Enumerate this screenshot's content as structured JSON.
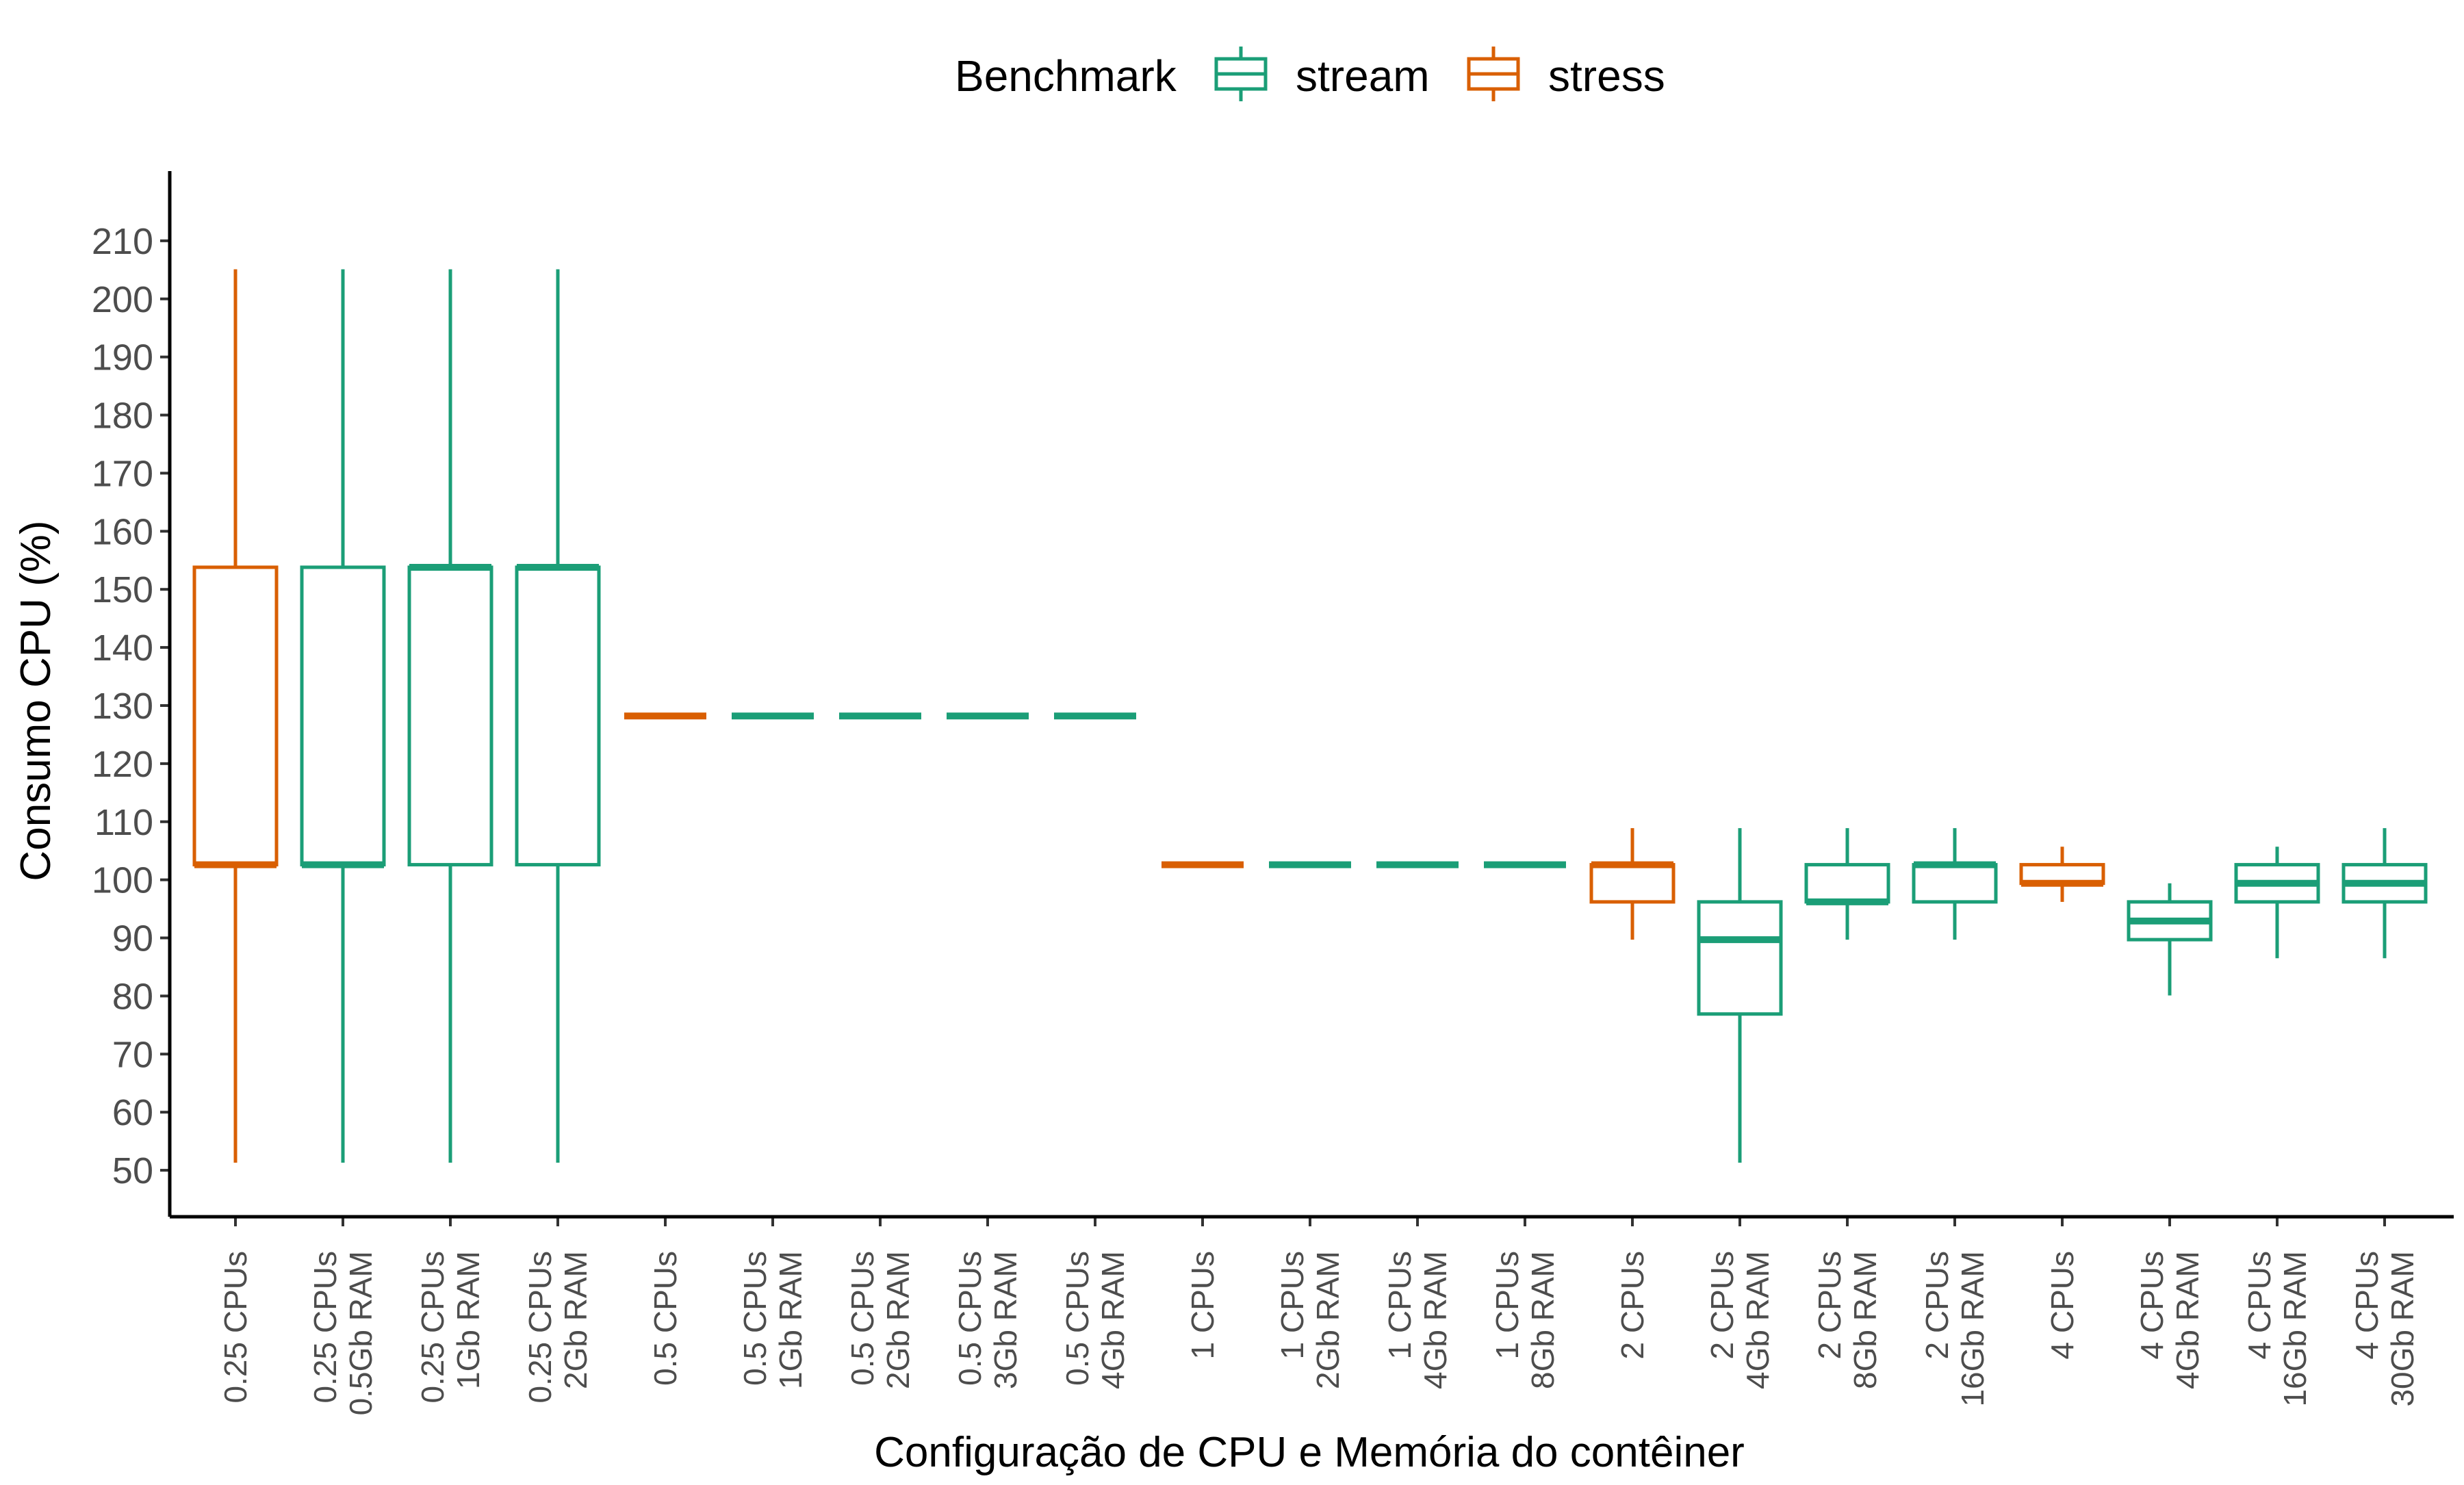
{
  "chart_data": {
    "type": "boxplot",
    "title": "",
    "xlabel": "Configuração de CPU e Memória do contêiner",
    "ylabel": "Consumo CPU (%)",
    "ylim": [
      42,
      222
    ],
    "yticks": [
      50,
      60,
      70,
      80,
      90,
      100,
      110,
      120,
      130,
      140,
      150,
      160,
      170,
      180,
      190,
      200,
      210
    ],
    "grid": false,
    "legend": {
      "title": "Benchmark",
      "position": "top",
      "entries": [
        {
          "name": "stream",
          "color": "#1b9e77"
        },
        {
          "name": "stress",
          "color": "#d95f02"
        }
      ]
    },
    "categories": [
      [
        "0.25 CPUs"
      ],
      [
        "0.25 CPUs",
        "0.5Gb RAM"
      ],
      [
        "0.25 CPUs",
        "1Gb RAM"
      ],
      [
        "0.25 CPUs",
        "2Gb RAM"
      ],
      [
        "0.5 CPUs"
      ],
      [
        "0.5 CPUs",
        "1Gb RAM"
      ],
      [
        "0.5 CPUs",
        "2Gb RAM"
      ],
      [
        "0.5 CPUs",
        "3Gb RAM"
      ],
      [
        "0.5 CPUs",
        "4Gb RAM"
      ],
      [
        "1 CPUs"
      ],
      [
        "1 CPUs",
        "2Gb RAM"
      ],
      [
        "1 CPUs",
        "4Gb RAM"
      ],
      [
        "1 CPUs",
        "8Gb RAM"
      ],
      [
        "2 CPUs"
      ],
      [
        "2 CPUs",
        "4Gb RAM"
      ],
      [
        "2 CPUs",
        "8Gb RAM"
      ],
      [
        "2 CPUs",
        "16Gb RAM"
      ],
      [
        "4 CPUs"
      ],
      [
        "4 CPUs",
        "4Gb RAM"
      ],
      [
        "4 CPUs",
        "16Gb RAM"
      ],
      [
        "4 CPUs",
        "30Gb RAM"
      ]
    ],
    "boxes": [
      {
        "benchmark": "stress",
        "min": 51.3,
        "q1": 102.6,
        "median": 102.6,
        "q3": 153.8,
        "max": 205.1
      },
      {
        "benchmark": "stream",
        "min": 51.3,
        "q1": 102.6,
        "median": 102.6,
        "q3": 153.8,
        "max": 205.1
      },
      {
        "benchmark": "stream",
        "min": 51.3,
        "q1": 102.6,
        "median": 153.8,
        "q3": 153.8,
        "max": 205.1
      },
      {
        "benchmark": "stream",
        "min": 51.3,
        "q1": 102.6,
        "median": 153.8,
        "q3": 153.8,
        "max": 205.1
      },
      {
        "benchmark": "stress",
        "min": 128.2,
        "q1": 128.2,
        "median": 128.2,
        "q3": 128.2,
        "max": 128.2
      },
      {
        "benchmark": "stream",
        "min": 128.2,
        "q1": 128.2,
        "median": 128.2,
        "q3": 128.2,
        "max": 128.2
      },
      {
        "benchmark": "stream",
        "min": 128.2,
        "q1": 128.2,
        "median": 128.2,
        "q3": 128.2,
        "max": 128.2
      },
      {
        "benchmark": "stream",
        "min": 128.2,
        "q1": 128.2,
        "median": 128.2,
        "q3": 128.2,
        "max": 128.2
      },
      {
        "benchmark": "stream",
        "min": 128.2,
        "q1": 128.2,
        "median": 128.2,
        "q3": 128.2,
        "max": 128.2
      },
      {
        "benchmark": "stress",
        "min": 102.6,
        "q1": 102.6,
        "median": 102.6,
        "q3": 102.6,
        "max": 102.6
      },
      {
        "benchmark": "stream",
        "min": 102.6,
        "q1": 102.6,
        "median": 102.6,
        "q3": 102.6,
        "max": 102.6
      },
      {
        "benchmark": "stream",
        "min": 102.6,
        "q1": 102.6,
        "median": 102.6,
        "q3": 102.6,
        "max": 102.6
      },
      {
        "benchmark": "stream",
        "min": 102.6,
        "q1": 102.6,
        "median": 102.6,
        "q3": 102.6,
        "max": 102.6
      },
      {
        "benchmark": "stress",
        "min": 89.7,
        "q1": 96.2,
        "median": 102.6,
        "q3": 102.6,
        "max": 108.9
      },
      {
        "benchmark": "stream",
        "min": 51.3,
        "q1": 76.9,
        "median": 89.7,
        "q3": 96.2,
        "max": 108.9
      },
      {
        "benchmark": "stream",
        "min": 89.7,
        "q1": 96.2,
        "median": 96.2,
        "q3": 102.6,
        "max": 108.9
      },
      {
        "benchmark": "stream",
        "min": 89.7,
        "q1": 96.2,
        "median": 102.6,
        "q3": 102.6,
        "max": 108.9
      },
      {
        "benchmark": "stress",
        "min": 96.2,
        "q1": 99.4,
        "median": 99.4,
        "q3": 102.6,
        "max": 105.7
      },
      {
        "benchmark": "stream",
        "min": 80.1,
        "q1": 89.7,
        "median": 92.9,
        "q3": 96.2,
        "max": 99.4
      },
      {
        "benchmark": "stream",
        "min": 86.5,
        "q1": 96.2,
        "median": 99.4,
        "q3": 102.6,
        "max": 105.7
      },
      {
        "benchmark": "stream",
        "min": 86.5,
        "q1": 96.2,
        "median": 99.4,
        "q3": 102.6,
        "max": 108.9
      }
    ]
  }
}
